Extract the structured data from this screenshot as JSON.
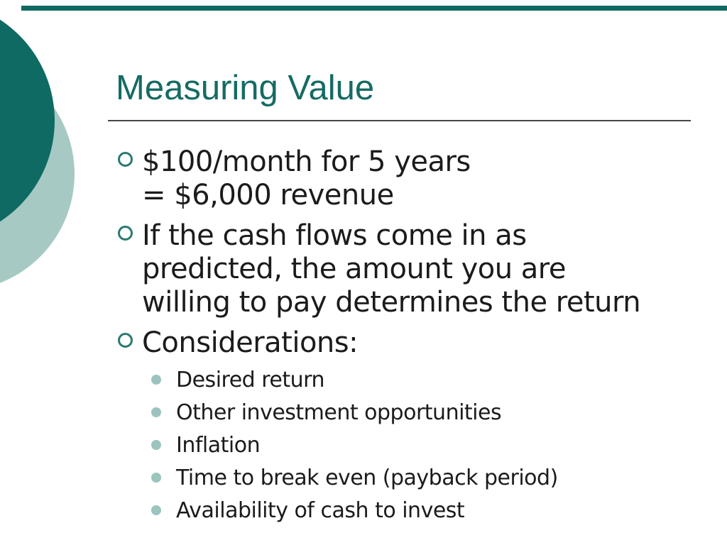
{
  "slide": {
    "title": "Measuring Value",
    "bullets": [
      {
        "level": 1,
        "bullet_icon": "ring-bullet-icon",
        "lines": [
          "$100/month for 5 years",
          "= $6,000 revenue"
        ]
      },
      {
        "level": 1,
        "bullet_icon": "ring-bullet-icon",
        "lines": [
          "If the cash flows come in as",
          "predicted, the amount you are",
          "willing to pay determines the return"
        ]
      },
      {
        "level": 1,
        "bullet_icon": "ring-bullet-icon",
        "lines": [
          "Considerations:"
        ]
      },
      {
        "level": 2,
        "bullet_icon": "dot-bullet-icon",
        "lines": [
          "Desired return"
        ]
      },
      {
        "level": 2,
        "bullet_icon": "dot-bullet-icon",
        "lines": [
          "Other investment opportunities"
        ]
      },
      {
        "level": 2,
        "bullet_icon": "dot-bullet-icon",
        "lines": [
          "Inflation"
        ]
      },
      {
        "level": 2,
        "bullet_icon": "dot-bullet-icon",
        "lines": [
          "Time to break even (payback period)"
        ]
      },
      {
        "level": 2,
        "bullet_icon": "dot-bullet-icon",
        "lines": [
          "Availability of cash to invest"
        ]
      }
    ],
    "colors": {
      "dark_teal": "#0E6A62",
      "title_teal": "#156B64",
      "ring_teal": "#2A7A73",
      "light_sage": "#A6C9C3",
      "dot_sage": "#9CC4BE",
      "body_text": "#1B1B1B",
      "rule_gray": "#454545",
      "background": "#FFFFFF"
    }
  }
}
